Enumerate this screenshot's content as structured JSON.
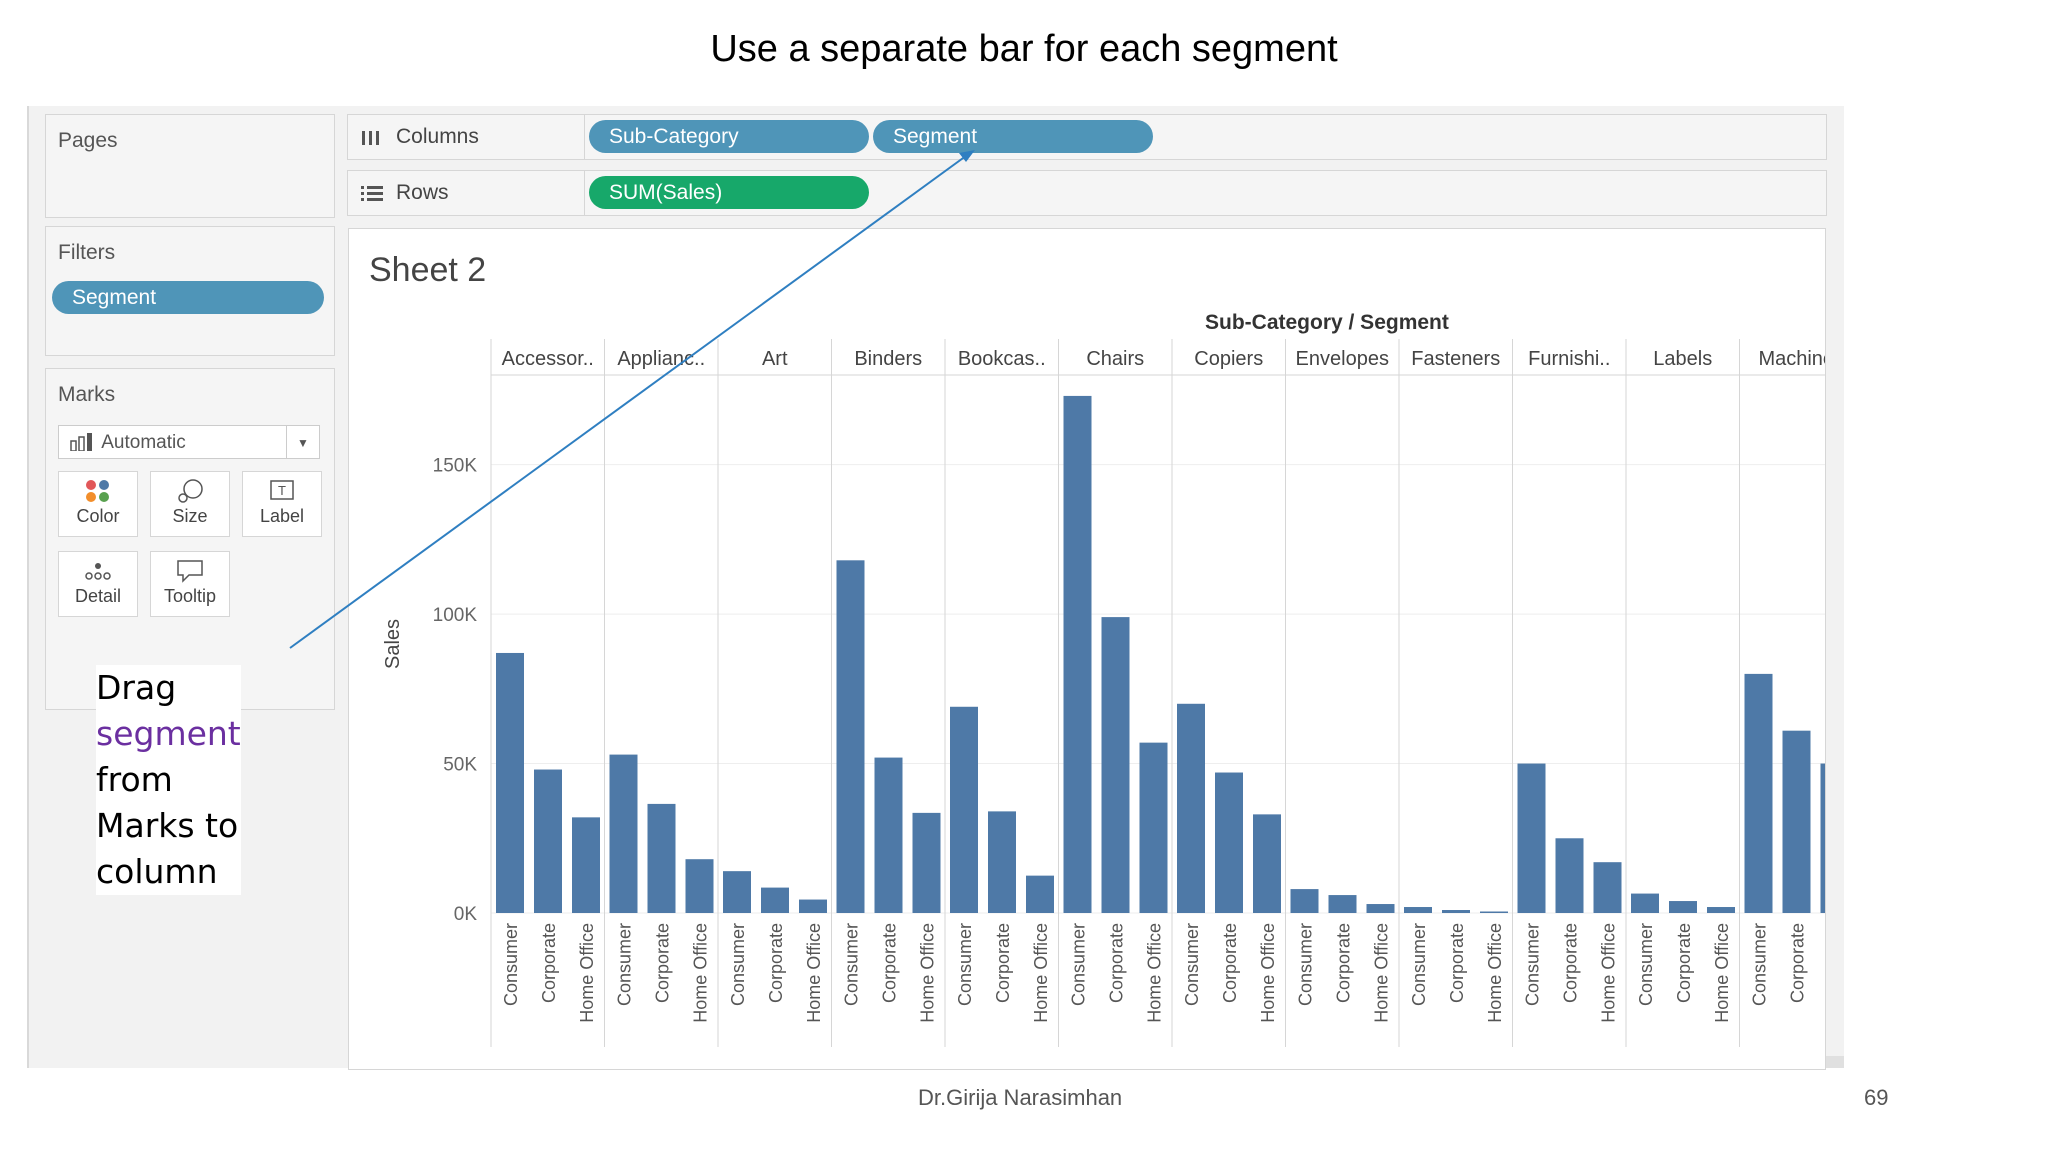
{
  "slide_title": "Use a separate bar for each segment",
  "footer": {
    "author": "Dr.Girija Narasimhan",
    "page_number": "69"
  },
  "annotation": {
    "line1": "Drag",
    "line2": "segment",
    "line3": "from",
    "line4": "Marks to",
    "line5": "column"
  },
  "panels": {
    "pages_title": "Pages",
    "filters_title": "Filters",
    "filter_pill": "Segment",
    "marks_title": "Marks",
    "mark_type": "Automatic",
    "mark_buttons": [
      "Color",
      "Size",
      "Label",
      "Detail",
      "Tooltip"
    ]
  },
  "shelves": {
    "columns_label": "Columns",
    "rows_label": "Rows",
    "columns_pills": [
      "Sub-Category",
      "Segment"
    ],
    "rows_pills": [
      "SUM(Sales)"
    ]
  },
  "colors": {
    "bar": "#4e79a7",
    "pill_dimension": "#4f95b8",
    "pill_measure": "#17a86a",
    "arrow": "#2f7fc1",
    "highlight": "#6b2fa0"
  },
  "sheet": {
    "title": "Sheet 2",
    "header": "Sub-Category / Segment",
    "y_label": "Sales",
    "y_ticks": [
      "150K",
      "100K",
      "50K",
      "0K"
    ]
  },
  "chart_data": {
    "type": "bar",
    "groups": [
      "Accessor..",
      "Applianc..",
      "Art",
      "Binders",
      "Bookcas..",
      "Chairs",
      "Copiers",
      "Envelopes",
      "Fasteners",
      "Furnishi..",
      "Labels",
      "Machine"
    ],
    "segments": [
      "Consumer",
      "Corporate",
      "Home Office"
    ],
    "ylabel": "Sales",
    "ylim": [
      0,
      180000
    ],
    "y_tick_values": [
      0,
      50000,
      100000,
      150000
    ],
    "values": [
      [
        87000,
        48000,
        32000
      ],
      [
        53000,
        36500,
        18000
      ],
      [
        14000,
        8500,
        4500
      ],
      [
        118000,
        52000,
        33500
      ],
      [
        69000,
        34000,
        12500
      ],
      [
        173000,
        99000,
        57000
      ],
      [
        70000,
        47000,
        33000
      ],
      [
        8000,
        6000,
        3000
      ],
      [
        2000,
        1000,
        500
      ],
      [
        50000,
        25000,
        17000
      ],
      [
        6500,
        4000,
        2000
      ],
      [
        80000,
        61000,
        50000
      ]
    ],
    "grid": true,
    "legend": "none"
  }
}
